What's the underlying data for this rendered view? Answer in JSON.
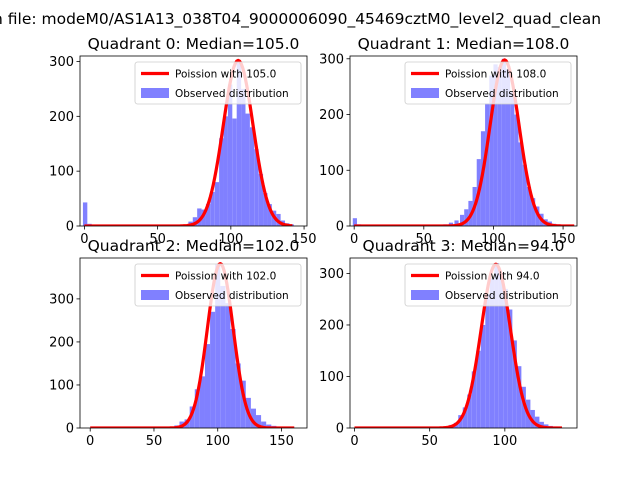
{
  "figure": {
    "suptitle": "n file: modeM0/AS1A13_038T04_9000006090_45469cztM0_level2_quad_clean"
  },
  "colors": {
    "hist": "#8080ff",
    "curve": "#ff0000",
    "legend_border": "#cccccc",
    "axis": "#000000"
  },
  "chart_data": [
    {
      "type": "bar",
      "title": "Quadrant 0: Median=105.0",
      "series": [
        {
          "name": "Poission with 105.0",
          "kind": "line"
        },
        {
          "name": "Observed distribution",
          "kind": "histogram"
        }
      ],
      "xlim": [
        -3,
        152
      ],
      "ylim": [
        0,
        310
      ],
      "xticks": [
        0,
        50,
        100,
        150
      ],
      "xtick_labels": [
        "0",
        "50",
        "100",
        "150"
      ],
      "yticks": [
        0,
        100,
        200,
        300
      ],
      "ytick_labels": [
        "0",
        "100",
        "200",
        "300"
      ],
      "legend_loc": "upper right",
      "hist": {
        "bin_width": 3,
        "bins": [
          [
            -1,
            43
          ],
          [
            2,
            4
          ],
          [
            71,
            8
          ],
          [
            74,
            16
          ],
          [
            77,
            32
          ],
          [
            80,
            30
          ],
          [
            83,
            40
          ],
          [
            86,
            62
          ],
          [
            89,
            80
          ],
          [
            92,
            160
          ],
          [
            95,
            200
          ],
          [
            98,
            258
          ],
          [
            101,
            196
          ],
          [
            104,
            298
          ],
          [
            107,
            250
          ],
          [
            110,
            205
          ],
          [
            113,
            180
          ],
          [
            116,
            140
          ],
          [
            119,
            95
          ],
          [
            122,
            60
          ],
          [
            125,
            40
          ],
          [
            128,
            28
          ],
          [
            131,
            22
          ],
          [
            134,
            10
          ],
          [
            137,
            5
          ],
          [
            140,
            3
          ]
        ]
      },
      "curve": {
        "lambda": 105,
        "peak": 302,
        "sigma": 10.2,
        "x_range": [
          0,
          142
        ]
      }
    },
    {
      "type": "bar",
      "title": "Quadrant 1: Median=108.0",
      "series": [
        {
          "name": "Poission with 108.0",
          "kind": "line"
        },
        {
          "name": "Observed distribution",
          "kind": "histogram"
        }
      ],
      "xlim": [
        -3,
        160
      ],
      "ylim": [
        0,
        305
      ],
      "xticks": [
        0,
        50,
        100,
        150
      ],
      "xtick_labels": [
        "0",
        "50",
        "100",
        "150"
      ],
      "yticks": [
        0,
        100,
        200,
        300
      ],
      "ytick_labels": [
        "0",
        "100",
        "200",
        "300"
      ],
      "legend_loc": "upper right",
      "hist": {
        "bin_width": 3,
        "bins": [
          [
            -1,
            14
          ],
          [
            2,
            3
          ],
          [
            64,
            3
          ],
          [
            68,
            6
          ],
          [
            72,
            10
          ],
          [
            76,
            20
          ],
          [
            79,
            30
          ],
          [
            82,
            45
          ],
          [
            85,
            70
          ],
          [
            88,
            120
          ],
          [
            91,
            170
          ],
          [
            94,
            220
          ],
          [
            97,
            270
          ],
          [
            100,
            290
          ],
          [
            103,
            285
          ],
          [
            106,
            300
          ],
          [
            109,
            282
          ],
          [
            112,
            240
          ],
          [
            115,
            200
          ],
          [
            118,
            150
          ],
          [
            121,
            110
          ],
          [
            124,
            70
          ],
          [
            127,
            50
          ],
          [
            130,
            35
          ],
          [
            133,
            22
          ],
          [
            136,
            12
          ],
          [
            139,
            8
          ],
          [
            142,
            4
          ],
          [
            145,
            3
          ],
          [
            148,
            2
          ],
          [
            152,
            2
          ],
          [
            155,
            2
          ]
        ]
      },
      "curve": {
        "lambda": 108,
        "peak": 298,
        "sigma": 10.4,
        "x_range": [
          0,
          158
        ]
      }
    },
    {
      "type": "bar",
      "title": "Quadrant 2: Median=102.0",
      "series": [
        {
          "name": "Poission with 102.0",
          "kind": "line"
        },
        {
          "name": "Observed distribution",
          "kind": "histogram"
        }
      ],
      "xlim": [
        -8,
        170
      ],
      "ylim": [
        0,
        395
      ],
      "xticks": [
        0,
        50,
        100,
        150
      ],
      "xtick_labels": [
        "0",
        "50",
        "100",
        "150"
      ],
      "yticks": [
        0,
        100,
        200,
        300
      ],
      "ytick_labels": [
        "0",
        "100",
        "200",
        "300"
      ],
      "legend_loc": "upper right",
      "hist": {
        "bin_width": 4,
        "bins": [
          [
            62,
            3
          ],
          [
            66,
            6
          ],
          [
            70,
            15
          ],
          [
            74,
            20
          ],
          [
            78,
            50
          ],
          [
            82,
            90
          ],
          [
            86,
            120
          ],
          [
            90,
            195
          ],
          [
            94,
            270
          ],
          [
            98,
            380
          ],
          [
            102,
            330
          ],
          [
            106,
            290
          ],
          [
            110,
            230
          ],
          [
            114,
            150
          ],
          [
            118,
            110
          ],
          [
            122,
            70
          ],
          [
            126,
            45
          ],
          [
            130,
            30
          ],
          [
            134,
            15
          ],
          [
            138,
            8
          ],
          [
            142,
            5
          ],
          [
            146,
            3
          ],
          [
            150,
            2
          ],
          [
            156,
            2
          ]
        ]
      },
      "curve": {
        "lambda": 102,
        "peak": 382,
        "sigma": 10.1,
        "x_range": [
          0,
          160
        ]
      }
    },
    {
      "type": "bar",
      "title": "Quadrant 3: Median=94.0",
      "series": [
        {
          "name": "Poission with 94.0",
          "kind": "line"
        },
        {
          "name": "Observed distribution",
          "kind": "histogram"
        }
      ],
      "xlim": [
        -3,
        148
      ],
      "ylim": [
        0,
        330
      ],
      "xticks": [
        0,
        50,
        100
      ],
      "xtick_labels": [
        "0",
        "50",
        "100"
      ],
      "yticks": [
        0,
        100,
        200,
        300
      ],
      "ytick_labels": [
        "0",
        "100",
        "200",
        "300"
      ],
      "legend_loc": "upper right",
      "hist": {
        "bin_width": 3,
        "bins": [
          [
            60,
            3
          ],
          [
            63,
            6
          ],
          [
            66,
            10
          ],
          [
            69,
            25
          ],
          [
            72,
            40
          ],
          [
            75,
            65
          ],
          [
            78,
            110
          ],
          [
            81,
            150
          ],
          [
            84,
            200
          ],
          [
            87,
            260
          ],
          [
            90,
            290
          ],
          [
            93,
            320
          ],
          [
            96,
            300
          ],
          [
            99,
            270
          ],
          [
            102,
            230
          ],
          [
            105,
            170
          ],
          [
            108,
            120
          ],
          [
            111,
            80
          ],
          [
            114,
            55
          ],
          [
            117,
            35
          ],
          [
            120,
            22
          ],
          [
            123,
            12
          ],
          [
            126,
            7
          ],
          [
            129,
            4
          ],
          [
            132,
            3
          ]
        ]
      },
      "curve": {
        "lambda": 94,
        "peak": 318,
        "sigma": 9.7,
        "x_range": [
          0,
          138
        ]
      }
    }
  ]
}
